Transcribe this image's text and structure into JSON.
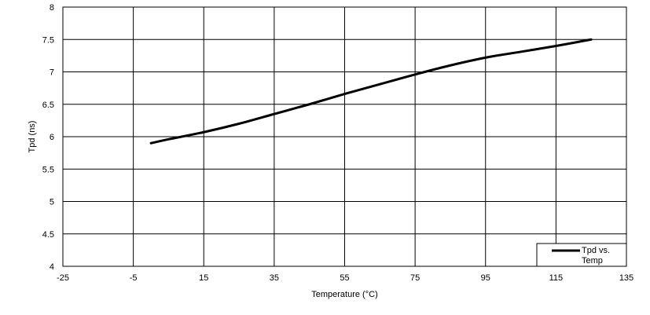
{
  "chart_data": {
    "type": "line",
    "xlabel": "Temperature (°C)",
    "ylabel": "Tpd (ns)",
    "xlim": [
      -25,
      135
    ],
    "ylim": [
      4,
      8
    ],
    "x_ticks": [
      -25,
      -5,
      15,
      35,
      55,
      75,
      95,
      115,
      135
    ],
    "y_ticks": [
      4,
      4.5,
      5,
      5.5,
      6,
      6.5,
      7,
      7.5,
      8
    ],
    "x_tick_labels": [
      "-25",
      "-5",
      "15",
      "35",
      "55",
      "75",
      "95",
      "115",
      "135"
    ],
    "y_tick_labels": [
      "4",
      "4.5",
      "5",
      "5.5",
      "6",
      "6.5",
      "7",
      "7.5",
      "8"
    ],
    "grid": true,
    "legend_position": "bottom-right",
    "legend_lines": [
      "Tpd vs.",
      "Temp"
    ],
    "series": [
      {
        "name": "Tpd vs. Temp",
        "color": "#000000",
        "x": [
          0,
          5,
          15,
          25,
          35,
          45,
          55,
          65,
          75,
          85,
          95,
          105,
          115,
          125
        ],
        "y": [
          5.9,
          5.96,
          6.07,
          6.2,
          6.35,
          6.5,
          6.66,
          6.81,
          6.96,
          7.1,
          7.22,
          7.31,
          7.4,
          7.5
        ]
      }
    ]
  }
}
